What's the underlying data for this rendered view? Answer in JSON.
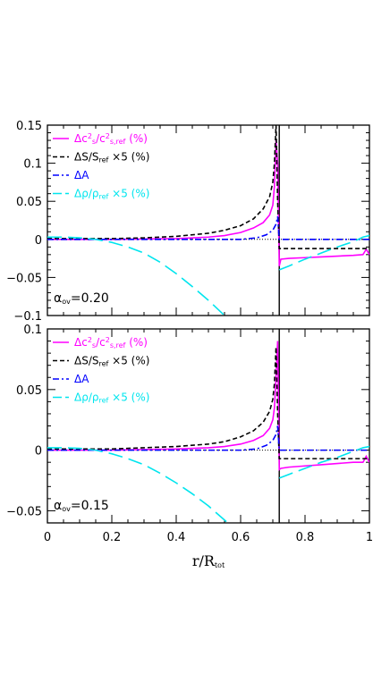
{
  "chart_data": [
    {
      "type": "line",
      "panel": "top",
      "xlim": [
        0,
        1
      ],
      "ylim": [
        -0.1,
        0.15
      ],
      "yticks": [
        -0.1,
        -0.05,
        0,
        0.05,
        0.1,
        0.15
      ],
      "ytick_labels": [
        "−0.1",
        "−0.05",
        "0",
        "0.05",
        "0.1",
        "0.15"
      ],
      "annotation": {
        "sym": "α",
        "sub": "ov",
        "rest": "=0.20"
      },
      "vline_x": 0.72,
      "legend": [
        {
          "color": "#ff00ff",
          "dash": "solid",
          "parts": [
            [
              "Δc",
              ""
            ],
            [
              "2",
              "sup"
            ],
            [
              "s",
              "sub"
            ],
            [
              "/c",
              ""
            ],
            [
              "2",
              "sup"
            ],
            [
              "s,ref",
              "sub"
            ],
            [
              "  (%)",
              ""
            ]
          ]
        },
        {
          "color": "#000000",
          "dash": "short",
          "parts": [
            [
              "ΔS/S",
              ""
            ],
            [
              "ref",
              "sub"
            ],
            [
              " ×5  (%)",
              ""
            ]
          ]
        },
        {
          "color": "#0000ff",
          "dash": "dashdot",
          "parts": [
            [
              "ΔA",
              ""
            ]
          ]
        },
        {
          "color": "#00e5ee",
          "dash": "long",
          "parts": [
            [
              "Δρ/ρ",
              ""
            ],
            [
              "ref",
              "sub"
            ],
            [
              " ×5  (%)",
              ""
            ]
          ]
        }
      ],
      "series": [
        {
          "color": "#ff00ff",
          "dash": "solid",
          "x": [
            0,
            0.2,
            0.4,
            0.5,
            0.55,
            0.6,
            0.64,
            0.67,
            0.69,
            0.7,
            0.705,
            0.71,
            0.715,
            0.72,
            0.725,
            0.75,
            0.8,
            0.85,
            0.9,
            0.95,
            0.98,
            0.99,
            1.0
          ],
          "y": [
            0,
            0,
            0.001,
            0.003,
            0.005,
            0.009,
            0.015,
            0.022,
            0.032,
            0.045,
            0.07,
            0.13,
            0.1,
            -0.035,
            -0.026,
            -0.025,
            -0.024,
            -0.023,
            -0.022,
            -0.021,
            -0.02,
            -0.013,
            -0.02
          ]
        },
        {
          "color": "#000000",
          "dash": "short",
          "x": [
            0,
            0.2,
            0.3,
            0.4,
            0.5,
            0.55,
            0.6,
            0.64,
            0.67,
            0.69,
            0.7,
            0.705,
            0.71,
            0.715,
            0.72,
            0.725,
            0.8,
            0.9,
            1.0
          ],
          "y": [
            0.001,
            0.001,
            0.002,
            0.004,
            0.008,
            0.012,
            0.018,
            0.027,
            0.04,
            0.056,
            0.075,
            0.1,
            0.15,
            0.05,
            -0.012,
            -0.012,
            -0.012,
            -0.012,
            -0.012
          ]
        },
        {
          "color": "#0000ff",
          "dash": "dashdot",
          "x": [
            0,
            0.6,
            0.65,
            0.68,
            0.7,
            0.71,
            0.715,
            0.72,
            0.73,
            1.0
          ],
          "y": [
            0,
            0,
            0.002,
            0.006,
            0.012,
            0.02,
            0.03,
            0,
            0,
            0
          ]
        },
        {
          "color": "#00e5ee",
          "dash": "long",
          "x": [
            0,
            0.05,
            0.1,
            0.15,
            0.2,
            0.25,
            0.3,
            0.35,
            0.4,
            0.45,
            0.5,
            0.55
          ],
          "y": [
            0.003,
            0.003,
            0.002,
            0,
            -0.004,
            -0.01,
            -0.018,
            -0.03,
            -0.045,
            -0.062,
            -0.08,
            -0.1
          ]
        },
        {
          "color": "#00e5ee",
          "dash": "long",
          "x": [
            0.72,
            0.75,
            0.8,
            0.85,
            0.9,
            0.95,
            0.98,
            1.0
          ],
          "y": [
            -0.04,
            -0.035,
            -0.026,
            -0.018,
            -0.01,
            -0.003,
            0.003,
            0.005
          ]
        }
      ]
    },
    {
      "type": "line",
      "panel": "bottom",
      "xlim": [
        0,
        1
      ],
      "ylim": [
        -0.06,
        0.1
      ],
      "yticks": [
        -0.05,
        0,
        0.05,
        0.1
      ],
      "ytick_labels": [
        "−0.05",
        "0",
        "0.05",
        "0.1"
      ],
      "xticks": [
        0,
        0.2,
        0.4,
        0.6,
        0.8,
        1
      ],
      "xtick_labels": [
        "0",
        "0.2",
        "0.4",
        "0.6",
        "0.8",
        "1"
      ],
      "xlabel": {
        "main": "r/R",
        "sub": "tot"
      },
      "annotation": {
        "sym": "α",
        "sub": "ov",
        "rest": "=0.15"
      },
      "vline_x": 0.72,
      "legend": [
        {
          "color": "#ff00ff",
          "dash": "solid",
          "parts": [
            [
              "Δc",
              ""
            ],
            [
              "2",
              "sup"
            ],
            [
              "s",
              "sub"
            ],
            [
              "/c",
              ""
            ],
            [
              "2",
              "sup"
            ],
            [
              "s,ref",
              "sub"
            ],
            [
              "  (%)",
              ""
            ]
          ]
        },
        {
          "color": "#000000",
          "dash": "short",
          "parts": [
            [
              "ΔS/S",
              ""
            ],
            [
              "ref",
              "sub"
            ],
            [
              " ×5  (%)",
              ""
            ]
          ]
        },
        {
          "color": "#0000ff",
          "dash": "dashdot",
          "parts": [
            [
              "ΔA",
              ""
            ]
          ]
        },
        {
          "color": "#00e5ee",
          "dash": "long",
          "parts": [
            [
              "Δρ/ρ",
              ""
            ],
            [
              "ref",
              "sub"
            ],
            [
              " ×5  (%)",
              ""
            ]
          ]
        }
      ],
      "series": [
        {
          "color": "#ff00ff",
          "dash": "solid",
          "x": [
            0,
            0.2,
            0.4,
            0.5,
            0.55,
            0.6,
            0.64,
            0.67,
            0.69,
            0.7,
            0.705,
            0.71,
            0.715,
            0.72,
            0.725,
            0.75,
            0.8,
            0.85,
            0.9,
            0.95,
            0.98,
            0.99,
            1.0
          ],
          "y": [
            0,
            0,
            0.001,
            0.002,
            0.003,
            0.005,
            0.008,
            0.012,
            0.018,
            0.025,
            0.035,
            0.06,
            0.09,
            -0.016,
            -0.015,
            -0.014,
            -0.013,
            -0.012,
            -0.011,
            -0.01,
            -0.01,
            -0.005,
            -0.01
          ]
        },
        {
          "color": "#000000",
          "dash": "short",
          "x": [
            0,
            0.2,
            0.3,
            0.4,
            0.5,
            0.55,
            0.6,
            0.64,
            0.67,
            0.69,
            0.7,
            0.705,
            0.71,
            0.715,
            0.72,
            0.725,
            0.8,
            0.9,
            1.0
          ],
          "y": [
            0.001,
            0.001,
            0.002,
            0.003,
            0.005,
            0.007,
            0.011,
            0.016,
            0.023,
            0.032,
            0.042,
            0.055,
            0.085,
            0.03,
            -0.007,
            -0.007,
            -0.007,
            -0.007,
            -0.007
          ]
        },
        {
          "color": "#0000ff",
          "dash": "dashdot",
          "x": [
            0,
            0.6,
            0.65,
            0.68,
            0.7,
            0.71,
            0.715,
            0.72,
            0.73,
            1.0
          ],
          "y": [
            0,
            0,
            0.001,
            0.004,
            0.008,
            0.013,
            0.02,
            0,
            0,
            0
          ]
        },
        {
          "color": "#00e5ee",
          "dash": "long",
          "x": [
            0,
            0.05,
            0.1,
            0.15,
            0.2,
            0.25,
            0.3,
            0.35,
            0.4,
            0.45,
            0.5,
            0.56
          ],
          "y": [
            0.002,
            0.002,
            0.0015,
            0,
            -0.003,
            -0.007,
            -0.012,
            -0.019,
            -0.027,
            -0.036,
            -0.046,
            -0.06
          ]
        },
        {
          "color": "#00e5ee",
          "dash": "long",
          "x": [
            0.72,
            0.75,
            0.8,
            0.85,
            0.9,
            0.95,
            0.98,
            1.0
          ],
          "y": [
            -0.023,
            -0.02,
            -0.015,
            -0.01,
            -0.006,
            -0.001,
            0.002,
            0.003
          ]
        }
      ]
    }
  ]
}
